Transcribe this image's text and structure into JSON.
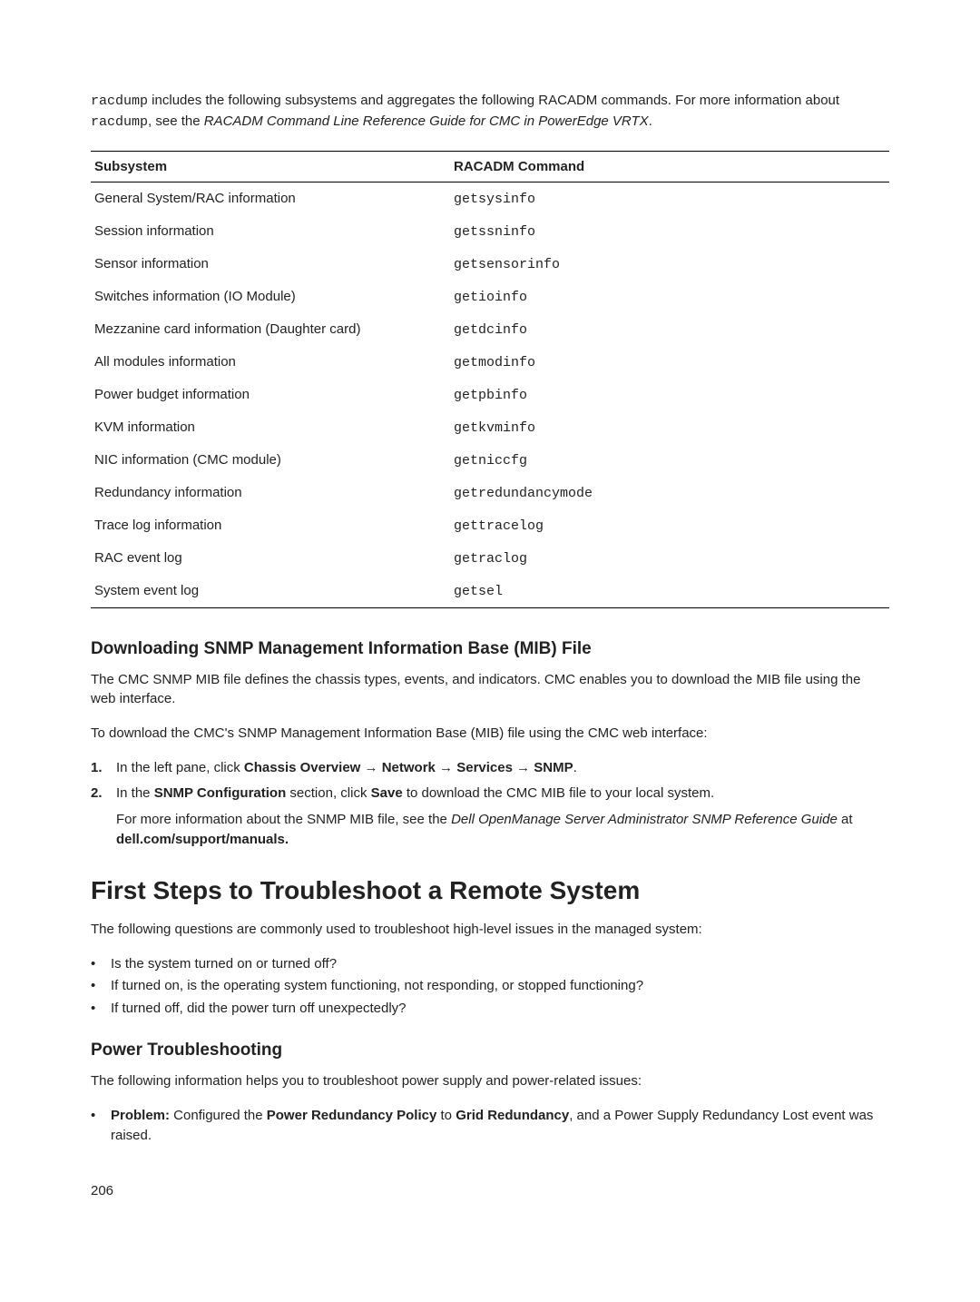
{
  "intro": {
    "pre1": "racdump",
    "mid1": " includes the following subsystems and aggregates the following RACADM commands. For more information about ",
    "pre2": "racdump",
    "mid2": ", see the ",
    "ital": "RACADM Command Line Reference Guide for CMC in PowerEdge VRTX",
    "tail": "."
  },
  "table": {
    "headers": [
      "Subsystem",
      "RACADM Command"
    ],
    "rows": [
      {
        "sub": "General System/RAC information",
        "cmd": "getsysinfo"
      },
      {
        "sub": "Session information",
        "cmd": "getssninfo"
      },
      {
        "sub": "Sensor information",
        "cmd": "getsensorinfo"
      },
      {
        "sub": "Switches information (IO Module)",
        "cmd": "getioinfo"
      },
      {
        "sub": "Mezzanine card information (Daughter card)",
        "cmd": "getdcinfo"
      },
      {
        "sub": "All modules information",
        "cmd": "getmodinfo"
      },
      {
        "sub": "Power budget information",
        "cmd": "getpbinfo"
      },
      {
        "sub": "KVM information",
        "cmd": "getkvminfo"
      },
      {
        "sub": "NIC information (CMC module)",
        "cmd": "getniccfg"
      },
      {
        "sub": "Redundancy information",
        "cmd": "getredundancymode"
      },
      {
        "sub": "Trace log information",
        "cmd": "gettracelog"
      },
      {
        "sub": "RAC event log",
        "cmd": "getraclog"
      },
      {
        "sub": "System event log",
        "cmd": "getsel"
      }
    ]
  },
  "mib": {
    "heading": "Downloading SNMP Management Information Base (MIB) File",
    "p1": "The CMC SNMP MIB file defines the chassis types, events, and indicators. CMC enables you to download the MIB file using the web interface.",
    "p2": "To download the CMC's SNMP Management Information Base (MIB) file using the CMC web interface:",
    "step1": {
      "num": "1.",
      "pre": "In the left pane, click ",
      "b1": "Chassis Overview",
      "a1": " → ",
      "b2": "Network",
      "a2": " → ",
      "b3": "Services",
      "a3": " → ",
      "b4": "SNMP",
      "tail": "."
    },
    "step2": {
      "num": "2.",
      "pre": "In the ",
      "b1": "SNMP Configuration",
      "mid1": " section, click ",
      "b2": "Save",
      "mid2": " to download the CMC MIB file to your local system.",
      "p2a": "For more information about the SNMP MIB file, see the ",
      "ital": "Dell OpenManage Server Administrator SNMP Reference Guide",
      "p2b": " at ",
      "b3": "dell.com/support/manuals."
    }
  },
  "first": {
    "heading": "First Steps to Troubleshoot a Remote System",
    "p1": "The following questions are commonly used to troubleshoot high-level issues in the managed system:",
    "bullets": [
      "Is the system turned on or turned off?",
      "If turned on, is the operating system functioning, not responding, or stopped functioning?",
      "If turned off, did the power turn off unexpectedly?"
    ]
  },
  "power": {
    "heading": "Power Troubleshooting",
    "p1": "The following information helps you to troubleshoot power supply and power-related issues:",
    "b1": {
      "lead": "Problem:",
      "mid1": " Configured the ",
      "b2": "Power Redundancy Policy",
      "mid2": " to ",
      "b3": "Grid Redundancy",
      "tail": ", and a Power Supply Redundancy Lost event was raised."
    }
  },
  "pagenum": "206"
}
